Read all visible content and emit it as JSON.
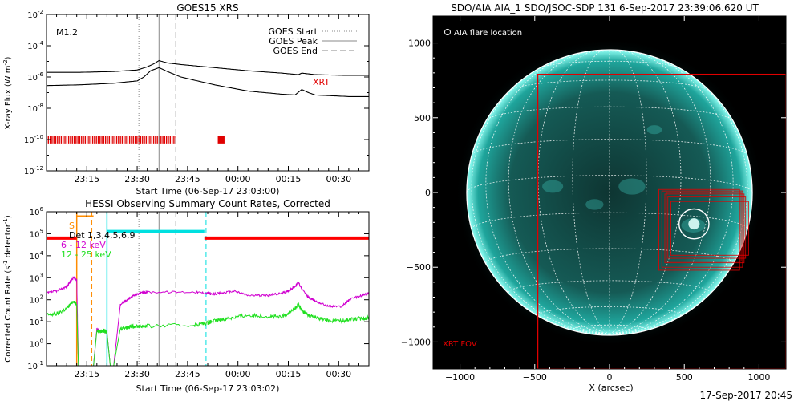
{
  "chart_data": [
    {
      "type": "line",
      "title": "GOES15 XRS",
      "xlabel": "Start Time (06-Sep-17 23:03:00)",
      "ylabel": "X-ray Flux (W m",
      "ylabel_sup": "-2",
      "ylabel_close": ")",
      "x_ticks": [
        "23:15",
        "23:30",
        "23:45",
        "00:00",
        "00:15",
        "00:30"
      ],
      "x_tick_minutes": [
        12,
        27,
        42,
        57,
        72,
        87
      ],
      "xlim_minutes": [
        0,
        96
      ],
      "y_scale": "log",
      "ylim_exp": [
        -12,
        -2
      ],
      "y_tick_exps": [
        -12,
        -10,
        -8,
        -6,
        -4,
        -2
      ],
      "y_tick_base": "10",
      "y_tick_labels": [
        "-12",
        "-10",
        "-8",
        "-6",
        "-4",
        "-2"
      ],
      "flare_class_label": "M1.2",
      "legend": [
        "GOES Start",
        "GOES Peak",
        "GOES End"
      ],
      "marker_minutes": {
        "start": 27.5,
        "peak": 33.5,
        "end": 38.5
      },
      "xrt_label": "XRT",
      "xrt_color": "#e00000",
      "series": [
        {
          "x_minutes": [
            0,
            10,
            20,
            27,
            30,
            32,
            33.5,
            36,
            40,
            50,
            60,
            70,
            75,
            76,
            78,
            80,
            90,
            96
          ],
          "log_values": [
            -5.7,
            -5.7,
            -5.65,
            -5.55,
            -5.35,
            -5.15,
            -4.95,
            -5.1,
            -5.2,
            -5.4,
            -5.6,
            -5.75,
            -5.85,
            -5.75,
            -5.8,
            -5.85,
            -5.9,
            -5.9
          ]
        },
        {
          "x_minutes": [
            0,
            10,
            20,
            27,
            29,
            31,
            33.5,
            36,
            40,
            50,
            60,
            70,
            74,
            76,
            78,
            80,
            90,
            96
          ],
          "log_values": [
            -6.55,
            -6.5,
            -6.4,
            -6.25,
            -6.0,
            -5.6,
            -5.4,
            -5.65,
            -6.0,
            -6.5,
            -6.9,
            -7.1,
            -7.15,
            -6.8,
            -7.0,
            -7.15,
            -7.25,
            -7.25
          ]
        }
      ],
      "xrt_intervals_minutes": [
        [
          0,
          38.5
        ],
        [
          51,
          53
        ]
      ]
    },
    {
      "type": "line",
      "title": "HESSI Observing Summary Count Rates, Corrected",
      "xlabel": "Start Time (06-Sep-17 23:03:02)",
      "ylabel": "Corrected Count Rate (s",
      "ylabel_sup": "-1",
      "ylabel_mid": " detector",
      "ylabel_close": ")",
      "x_ticks": [
        "23:15",
        "23:30",
        "23:45",
        "00:00",
        "00:15",
        "00:30"
      ],
      "x_tick_minutes": [
        12,
        27,
        42,
        57,
        72,
        87
      ],
      "xlim_minutes": [
        0,
        96
      ],
      "y_scale": "log",
      "ylim_exp": [
        -1,
        6
      ],
      "y_tick_exps": [
        -1,
        0,
        1,
        2,
        3,
        4,
        5,
        6
      ],
      "y_tick_base": "10",
      "y_tick_labels": [
        "-1",
        "0",
        "1",
        "2",
        "3",
        "4",
        "5",
        "6"
      ],
      "legend": [
        "Det 1,3,4,5,6,9",
        "6 - 12 keV",
        "12 - 25 keV"
      ],
      "s_label": "S",
      "series": [
        {
          "name": "6 - 12 keV",
          "color": "#d000d0",
          "x_minutes": [
            0,
            3,
            6,
            8,
            9,
            9.5,
            14,
            15,
            16,
            17,
            18,
            19,
            20,
            22,
            24,
            26,
            28,
            30,
            44,
            48,
            49,
            52,
            56,
            60,
            66,
            70,
            72,
            74,
            75,
            76,
            78,
            80,
            84,
            88,
            90,
            94,
            96
          ],
          "log_values": [
            2.3,
            2.4,
            2.6,
            3.0,
            2.9,
            -1.0,
            -1.0,
            0.7,
            0.55,
            0.6,
            0.5,
            -1.0,
            -1.0,
            1.8,
            2.0,
            2.2,
            2.3,
            2.35,
            2.35,
            2.3,
            2.25,
            2.3,
            2.4,
            2.2,
            2.2,
            2.3,
            2.4,
            2.6,
            2.8,
            2.5,
            2.1,
            1.95,
            1.7,
            1.7,
            2.0,
            2.2,
            2.3
          ]
        },
        {
          "name": "12 - 25 keV",
          "color": "#20e020",
          "x_minutes": [
            0,
            3,
            6,
            8,
            9,
            9.5,
            14,
            15,
            16,
            17,
            18,
            19,
            20,
            22,
            24,
            26,
            28,
            30,
            44,
            48,
            49,
            52,
            56,
            60,
            66,
            70,
            72,
            74,
            75,
            76,
            78,
            80,
            84,
            88,
            90,
            94,
            96
          ],
          "log_values": [
            1.3,
            1.35,
            1.6,
            1.95,
            1.8,
            -1.0,
            -1.0,
            0.6,
            0.55,
            0.6,
            0.5,
            -1.0,
            -1.0,
            0.7,
            0.75,
            0.8,
            0.8,
            0.8,
            0.85,
            0.95,
            1.0,
            1.1,
            1.2,
            1.3,
            1.25,
            1.2,
            1.4,
            1.6,
            1.8,
            1.5,
            1.3,
            1.2,
            1.05,
            1.05,
            1.1,
            1.15,
            1.2
          ]
        }
      ],
      "red_level_exp": 4.8,
      "red_intervals_minutes": [
        [
          0,
          9
        ],
        [
          47,
          96
        ]
      ],
      "cyan_level_exp": 5.1,
      "cyan_interval_minutes": [
        18,
        47
      ],
      "orange_level_exp": 5.8,
      "orange_interval_minutes": [
        9,
        14
      ],
      "vlines_minutes": {
        "orange_solid": 9,
        "orange_dash": 13.5,
        "cyan_solid": 18,
        "gray_dot": 27.5,
        "gray_solid": 33.5,
        "gray_dash": 38.5,
        "cyan_dash": 47.5
      },
      "colors": {
        "red": "#ff0000",
        "cyan": "#00e0e0",
        "orange": "#ff8c00",
        "magenta": "#d000d0",
        "green": "#20e020"
      }
    },
    {
      "type": "scatter",
      "title": "SDO/AIA AIA_1 SDO/JSOC-SDP 131  6-Sep-2017 23:39:06.620 UT",
      "xlabel": "X (arcsec)",
      "x_ticks": [
        -1000,
        -500,
        0,
        500,
        1000
      ],
      "x_tick_labels": [
        "−1000",
        "−500",
        "0",
        "500",
        "1000"
      ],
      "y_ticks": [
        -1000,
        -500,
        0,
        500,
        1000
      ],
      "y_tick_labels": [
        "−1000",
        "−500",
        "0",
        "500",
        "1000"
      ],
      "xlim": [
        -1180,
        1180
      ],
      "ylim": [
        -1180,
        1180
      ],
      "solar_radius_arcsec": 955,
      "legend_label": "AIA flare location",
      "fov_label": "XRT FOV",
      "flare_location_arcsec": [
        565,
        -210
      ],
      "flare_circle_radius_arcsec": 100,
      "xrt_fov_arcsec": [
        -480,
        -1180,
        1180,
        790
      ],
      "pointing_boxes_arcsec": [
        [
          330,
          -520,
          870,
          20
        ],
        [
          350,
          -500,
          890,
          10
        ],
        [
          370,
          -470,
          900,
          -10
        ],
        [
          390,
          -440,
          910,
          -30
        ],
        [
          410,
          -420,
          930,
          -60
        ],
        [
          380,
          -460,
          880,
          0
        ]
      ],
      "colors": {
        "disk": "#1fa59c",
        "grid": "#ffffff",
        "fov": "#e00000"
      }
    }
  ],
  "footer_date": "17-Sep-2017 20:45"
}
